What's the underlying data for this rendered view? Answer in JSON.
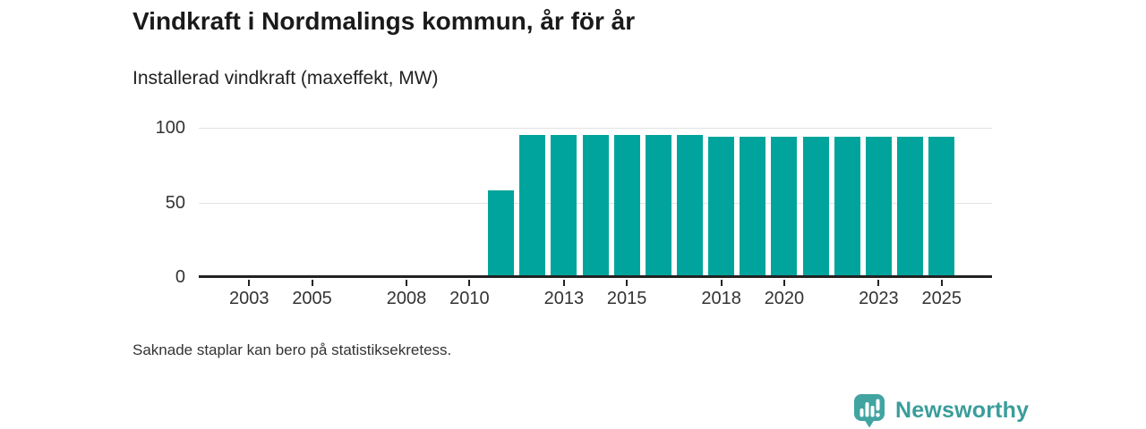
{
  "header": {
    "title": "Vindkraft i Nordmalings kommun, år för år",
    "subtitle": "Installerad vindkraft (maxeffekt, MW)"
  },
  "footnote": "Saknade staplar kan bero på statistiksekretess.",
  "branding": {
    "name": "Newsworthy",
    "icon": "bar-chart-speech-bubble-icon",
    "icon_color": "#41a4a1",
    "text_color": "#3a9d9a"
  },
  "colors": {
    "bar": "#00a49c",
    "axis": "#222222",
    "grid": "#e3e3e3",
    "tick": "#222222",
    "tick_label": "#333333",
    "background": "#ffffff"
  },
  "chart_data": {
    "type": "bar",
    "title": "Vindkraft i Nordmalings kommun, år för år",
    "ylabel": "Installerad vindkraft (maxeffekt, MW)",
    "unit": "MW",
    "x": [
      2011,
      2012,
      2013,
      2014,
      2015,
      2016,
      2017,
      2018,
      2019,
      2020,
      2021,
      2022,
      2023,
      2024,
      2025
    ],
    "values": [
      58,
      95,
      95,
      95,
      95,
      95,
      95,
      94,
      94,
      94,
      94,
      94,
      94,
      94,
      94
    ],
    "missing_years_shown_empty": [
      2001,
      2002,
      2003,
      2004,
      2005,
      2006,
      2007,
      2008,
      2009,
      2010
    ],
    "xlim": [
      2001.4,
      2026.6
    ],
    "ylim": [
      0,
      100
    ],
    "xticks": [
      2003,
      2005,
      2008,
      2010,
      2013,
      2015,
      2018,
      2020,
      2023,
      2025
    ],
    "yticks": [
      0,
      50,
      100
    ],
    "grid": "y",
    "note": "Saknade staplar kan bero på statistiksekretess."
  }
}
